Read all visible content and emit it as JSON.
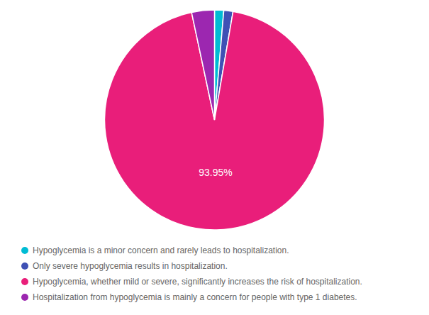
{
  "chart_data": {
    "type": "pie",
    "categories": [
      "Hypoglycemia is a minor concern and rarely leads to hospitalization.",
      "Only severe hypoglycemia results in hospitalization.",
      "Hypoglycemia, whether mild or severe, significantly increases the risk of hospitalization.",
      "Hospitalization from hypoglycemia is mainly a concern for people with type 1 diabetes."
    ],
    "values": [
      1.35,
      1.35,
      93.95,
      3.35
    ],
    "colors": [
      "#00BCD4",
      "#3F51B5",
      "#E91E7A",
      "#9C27B0"
    ],
    "data_labels": true,
    "value_labels": [
      null,
      null,
      "93.95%",
      null
    ],
    "legend": "bottom"
  }
}
